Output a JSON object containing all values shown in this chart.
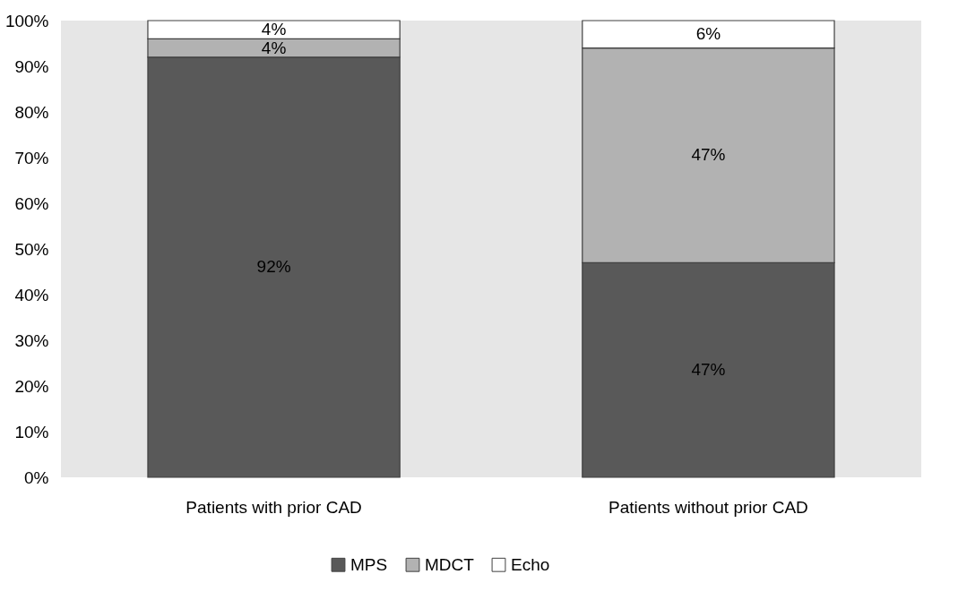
{
  "chart_data": {
    "type": "bar",
    "stacked": true,
    "categories": [
      "Patients with prior CAD",
      "Patients without prior CAD"
    ],
    "series": [
      {
        "name": "MPS",
        "color": "#595959",
        "values": [
          92,
          47
        ],
        "value_labels": [
          "92%",
          "47%"
        ]
      },
      {
        "name": "MDCT",
        "color": "#b2b2b2",
        "values": [
          4,
          47
        ],
        "value_labels": [
          "4%",
          "47%"
        ]
      },
      {
        "name": "Echo",
        "color": "#ffffff",
        "values": [
          4,
          6
        ],
        "value_labels": [
          "4%",
          "6%"
        ]
      }
    ],
    "ylim": [
      0,
      100
    ],
    "yticks": [
      {
        "value": 0,
        "label": "0%"
      },
      {
        "value": 10,
        "label": "10%"
      },
      {
        "value": 20,
        "label": "20%"
      },
      {
        "value": 30,
        "label": "30%"
      },
      {
        "value": 40,
        "label": "40%"
      },
      {
        "value": 50,
        "label": "50%"
      },
      {
        "value": 60,
        "label": "60%"
      },
      {
        "value": 70,
        "label": "70%"
      },
      {
        "value": 80,
        "label": "80%"
      },
      {
        "value": 90,
        "label": "90%"
      },
      {
        "value": 100,
        "label": "100%"
      }
    ],
    "grid": false,
    "legend": "bottom"
  }
}
